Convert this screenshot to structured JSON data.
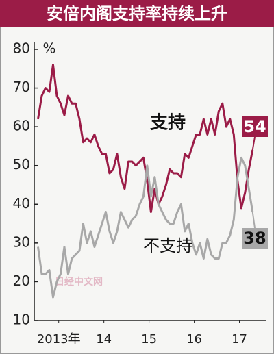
{
  "chart_data": {
    "type": "line",
    "title": "安倍内阁支持率持续上升",
    "y_unit": "%",
    "x": [
      0,
      1,
      2,
      3,
      4,
      5,
      6,
      7,
      8,
      9,
      10,
      11,
      12,
      13,
      14,
      15,
      16,
      17,
      18,
      19,
      20,
      21,
      22,
      23,
      24,
      25,
      26,
      27,
      28,
      29,
      30,
      31,
      32,
      33,
      34,
      35,
      36,
      37,
      38,
      39,
      40,
      41,
      42,
      43,
      44,
      45,
      46,
      47,
      48,
      49,
      50,
      51,
      52,
      53,
      54,
      55,
      56,
      57
    ],
    "series": [
      {
        "name": "支持",
        "color": "#9b1c47",
        "values": [
          62,
          68,
          70,
          69,
          76,
          68,
          66,
          63,
          68,
          66,
          66,
          62,
          56,
          57,
          56,
          58,
          55,
          53,
          53,
          48,
          49,
          53,
          47,
          44,
          51,
          51,
          50,
          51,
          52,
          46,
          38,
          44,
          40,
          42,
          45,
          49,
          48,
          48,
          47,
          53,
          52,
          55,
          58,
          58,
          62,
          58,
          62,
          58,
          64,
          66,
          60,
          62,
          58,
          46,
          39,
          43,
          49,
          54
        ]
      },
      {
        "name": "不支持",
        "color": "#a8a8a8",
        "values": [
          29,
          22,
          22,
          23,
          16,
          20,
          22,
          29,
          22,
          26,
          27,
          28,
          35,
          30,
          33,
          29,
          32,
          35,
          38,
          33,
          30,
          33,
          38,
          36,
          34,
          36,
          37,
          40,
          42,
          50,
          42,
          47,
          40,
          38,
          36,
          35,
          35,
          38,
          40,
          33,
          35,
          30,
          27,
          30,
          26,
          31,
          27,
          26,
          26,
          30,
          30,
          32,
          36,
          47,
          52,
          50,
          44,
          38
        ]
      }
    ],
    "xlim": [
      -1,
      60.5
    ],
    "xticks": [
      {
        "value": 5.5,
        "label": "2013年"
      },
      {
        "value": 17.5,
        "label": "14"
      },
      {
        "value": 29.5,
        "label": "15"
      },
      {
        "value": 41.5,
        "label": "16"
      },
      {
        "value": 53.5,
        "label": "17"
      }
    ],
    "ylim": [
      10,
      80
    ],
    "yticks": [
      10,
      20,
      30,
      40,
      50,
      60,
      70,
      80
    ],
    "watermark": "日经中文网"
  }
}
